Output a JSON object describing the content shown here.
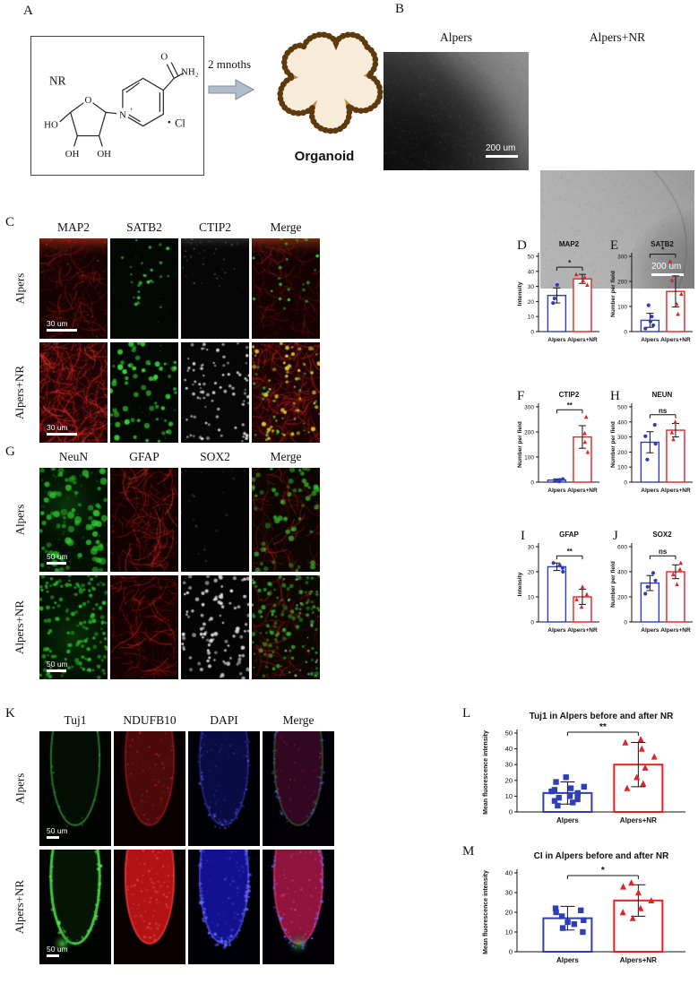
{
  "colors": {
    "alpers": "#2e3db8",
    "alpers_nr": "#e02424"
  },
  "panelA": {
    "label": "A",
    "nr_label": "NR",
    "arrow_text": "2 mnoths",
    "organoid_label": "Organoid",
    "atoms": {
      "carbonyl_o": "O",
      "amide": "NH₂",
      "ring_n": "N",
      "plus": "+",
      "ribose_o": "O",
      "ho": "HO",
      "oh_left": "OH",
      "oh_right": "OH",
      "dot": "·",
      "cl": "Cl"
    }
  },
  "panelB": {
    "label": "B",
    "titles": [
      "Alpers",
      "Alpers+NR"
    ],
    "scale_bar": "200 um"
  },
  "panelC": {
    "label": "C",
    "columns": [
      "MAP2",
      "SATB2",
      "CTIP2",
      "Merge"
    ],
    "rows": [
      "Alpers",
      "Alpers+NR"
    ],
    "scale_bar": "30 um"
  },
  "panelG": {
    "label": "G",
    "columns": [
      "NeuN",
      "GFAP",
      "SOX2",
      "Merge"
    ],
    "rows": [
      "Alpers",
      "Alpers+NR"
    ],
    "scale_bar": "50 um"
  },
  "panelK": {
    "label": "K",
    "columns": [
      "Tuj1",
      "NDUFB10",
      "DAPI",
      "Merge"
    ],
    "rows": [
      "Alpers",
      "Alpers+NR"
    ],
    "scale_bar": "50 um"
  },
  "chart_data": [
    {
      "panel": "D",
      "type": "bar",
      "title": "MAP2",
      "sig": "*",
      "ylabel": "Intensity",
      "ylim": [
        0,
        50
      ],
      "yticks": [
        0,
        10,
        20,
        30,
        40,
        50
      ],
      "categories": [
        "Alpers",
        "Alpers+NR"
      ],
      "values": [
        24,
        35
      ],
      "errors": [
        5,
        3
      ],
      "points": [
        [
          19,
          22,
          31
        ],
        [
          31,
          34,
          36,
          38
        ]
      ],
      "markers": [
        "circle",
        "triangle"
      ]
    },
    {
      "panel": "E",
      "type": "bar",
      "title": "SATB2",
      "sig": "*",
      "ylabel": "Number per field",
      "ylim": [
        0,
        300
      ],
      "yticks": [
        0,
        100,
        200,
        300
      ],
      "categories": [
        "Alpers",
        "Alpers+NR"
      ],
      "values": [
        45,
        160
      ],
      "errors": [
        28,
        62
      ],
      "points": [
        [
          12,
          25,
          40,
          60,
          105
        ],
        [
          70,
          110,
          150,
          205,
          280
        ]
      ],
      "markers": [
        "circle",
        "triangle"
      ]
    },
    {
      "panel": "F",
      "type": "bar",
      "title": "CTIP2",
      "sig": "**",
      "ylabel": "Number per field",
      "ylim": [
        0,
        300
      ],
      "yticks": [
        0,
        100,
        200,
        300
      ],
      "categories": [
        "Alpers",
        "Alpers+NR"
      ],
      "values": [
        8,
        180
      ],
      "errors": [
        5,
        45
      ],
      "points": [
        [
          3,
          6,
          9,
          12
        ],
        [
          120,
          160,
          195,
          260
        ]
      ],
      "markers": [
        "circle",
        "triangle"
      ]
    },
    {
      "panel": "H",
      "type": "bar",
      "title": "NEUN",
      "sig": "ns",
      "ylabel": "Number per field",
      "ylim": [
        0,
        500
      ],
      "yticks": [
        0,
        100,
        200,
        300,
        400,
        500
      ],
      "categories": [
        "Alpers",
        "Alpers+NR"
      ],
      "values": [
        265,
        345
      ],
      "errors": [
        70,
        45
      ],
      "points": [
        [
          150,
          255,
          305,
          380
        ],
        [
          285,
          330,
          400
        ]
      ],
      "markers": [
        "circle",
        "triangle"
      ]
    },
    {
      "panel": "I",
      "type": "bar",
      "title": "GFAP",
      "sig": "**",
      "ylabel": "Intensity",
      "ylim": [
        0,
        30
      ],
      "yticks": [
        0,
        10,
        20,
        30
      ],
      "categories": [
        "Alpers",
        "Alpers+NR"
      ],
      "values": [
        22,
        10
      ],
      "errors": [
        1.5,
        3
      ],
      "points": [
        [
          20,
          21.5,
          22.5,
          23.5
        ],
        [
          6,
          9,
          11,
          14
        ]
      ],
      "markers": [
        "circle",
        "triangle"
      ]
    },
    {
      "panel": "J",
      "type": "bar",
      "title": "SOX2",
      "sig": "ns",
      "ylabel": "Number per field",
      "ylim": [
        0,
        600
      ],
      "yticks": [
        0,
        200,
        400,
        600
      ],
      "categories": [
        "Alpers",
        "Alpers+NR"
      ],
      "values": [
        310,
        400
      ],
      "errors": [
        60,
        55
      ],
      "points": [
        [
          225,
          280,
          330,
          390
        ],
        [
          300,
          380,
          420,
          470
        ]
      ],
      "markers": [
        "circle",
        "triangle"
      ]
    },
    {
      "panel": "L",
      "type": "bar",
      "title": "Tuj1 in Alpers before and after NR",
      "sig": "**",
      "ylabel": "Mean fluorescence intensity",
      "ylim": [
        0,
        50
      ],
      "yticks": [
        0,
        10,
        20,
        30,
        40,
        50
      ],
      "categories": [
        "Alpers",
        "Alpers+NR"
      ],
      "values": [
        12,
        30
      ],
      "errors": [
        7,
        14
      ],
      "points": [
        [
          4,
          6,
          7,
          8,
          9,
          10,
          11,
          12,
          13,
          14,
          15,
          16,
          19,
          22
        ],
        [
          15,
          18,
          22,
          28,
          35,
          40,
          44,
          46
        ]
      ],
      "markers": [
        "square",
        "triangle"
      ]
    },
    {
      "panel": "M",
      "type": "bar",
      "title": "CI in Alpers before and after NR",
      "sig": "*",
      "ylabel": "Mean fluorescence intensity",
      "ylim": [
        0,
        40
      ],
      "yticks": [
        0,
        10,
        20,
        30,
        40
      ],
      "categories": [
        "Alpers",
        "Alpers+NR"
      ],
      "values": [
        17,
        26
      ],
      "errors": [
        6,
        8
      ],
      "points": [
        [
          10,
          12,
          14,
          15,
          16,
          18,
          20,
          21,
          22
        ],
        [
          17,
          20,
          22,
          26,
          30,
          33,
          35
        ]
      ],
      "markers": [
        "square",
        "triangle"
      ]
    }
  ]
}
